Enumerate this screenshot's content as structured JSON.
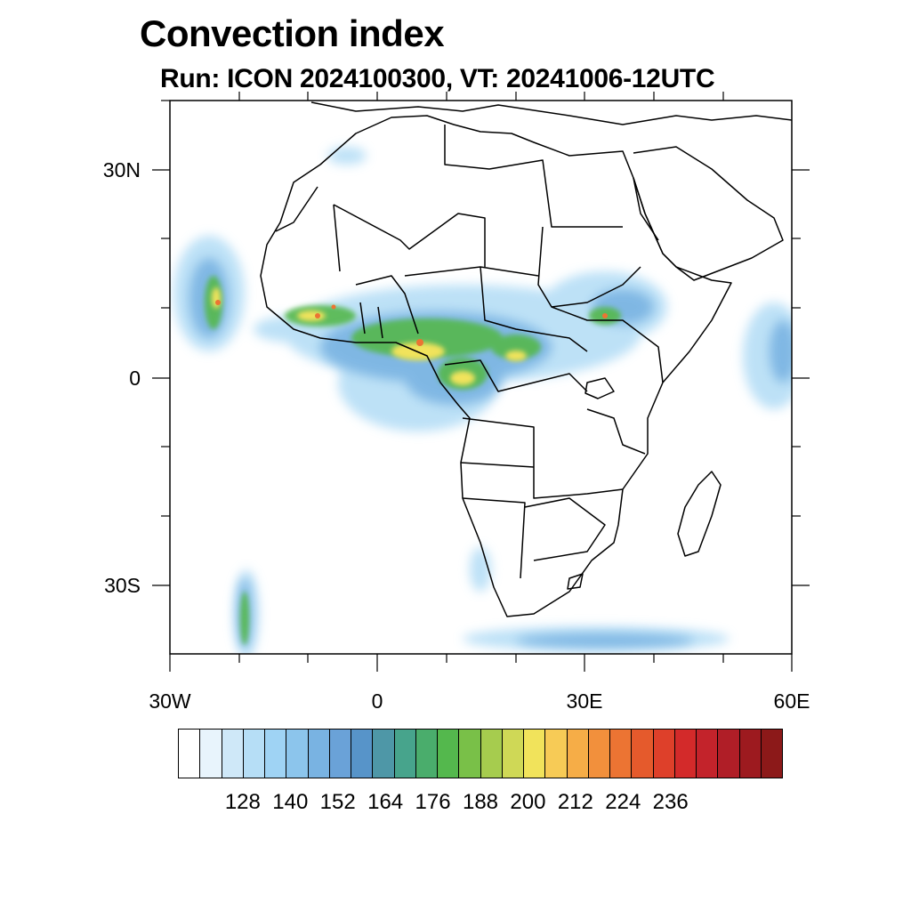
{
  "title": "Convection index",
  "subtitle": "Run: ICON 2024100300,  VT: 20241006-12UTC",
  "axes": {
    "lat_labels": [
      "30N",
      "0",
      "30S"
    ],
    "lon_labels": [
      "30W",
      "0",
      "30E",
      "60E"
    ],
    "lat_values": [
      30,
      0,
      -30
    ],
    "lon_values": [
      -30,
      0,
      30,
      60
    ],
    "lat_range": [
      -40,
      40
    ],
    "lon_range": [
      -30,
      60
    ]
  },
  "colorbar": {
    "colors": [
      "#ffffff",
      "#e8f4fc",
      "#cfe8f8",
      "#b6def6",
      "#9fd3f4",
      "#8cc5ec",
      "#79b3e2",
      "#6aa2d8",
      "#5794c9",
      "#4e97a7",
      "#47a48c",
      "#4aad6c",
      "#54b84d",
      "#79c048",
      "#a6cc4e",
      "#cfd856",
      "#f1e35b",
      "#f7cb56",
      "#f6ad47",
      "#f2903c",
      "#ec7433",
      "#e55a2c",
      "#de402a",
      "#d32a2a",
      "#c3232b",
      "#b01e27",
      "#9d1a1f",
      "#8c1919"
    ],
    "labels": [
      "128",
      "140",
      "152",
      "164",
      "176",
      "188",
      "200",
      "212",
      "224",
      "236"
    ]
  },
  "map": {
    "region": "Africa",
    "field": "Convection index"
  }
}
